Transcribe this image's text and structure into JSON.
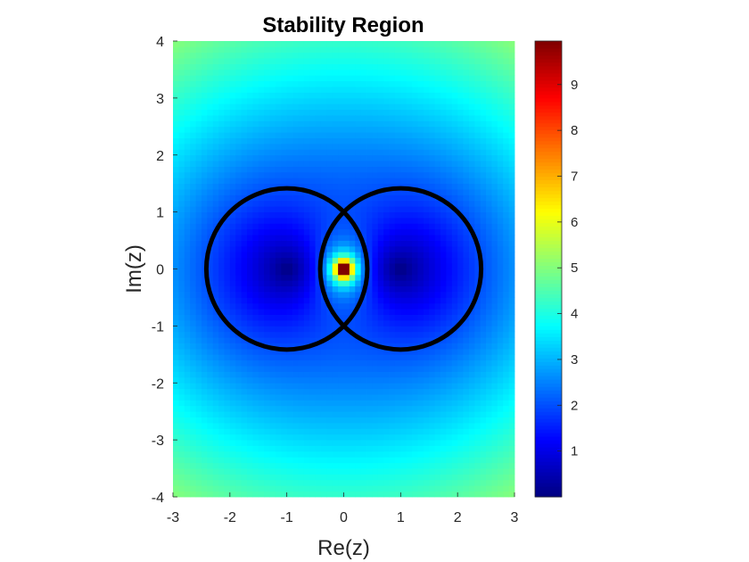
{
  "chart_data": {
    "type": "heatmap",
    "title": "Stability Region",
    "xlabel": "Re(z)",
    "ylabel": "Im(z)",
    "xlim": [
      -3,
      3
    ],
    "ylim": [
      -4,
      4
    ],
    "x_ticks": [
      "-3",
      "-2",
      "-1",
      "0",
      "1",
      "2",
      "3"
    ],
    "y_ticks": [
      "4",
      "3",
      "2",
      "1",
      "0",
      "-1",
      "-2",
      "-3",
      "-4"
    ],
    "colormap": "jet",
    "color_range": [
      0,
      9.95
    ],
    "colorbar_ticks": [
      "1",
      "2",
      "3",
      "4",
      "5",
      "6",
      "7",
      "8",
      "9"
    ],
    "value_function": "|z^2 - 1| / |z|",
    "grid": false,
    "boundary_curves": [
      {
        "center": [
          -1,
          0
        ],
        "radius": 1.414,
        "color": "#000000"
      },
      {
        "center": [
          1,
          0
        ],
        "radius": 1.414,
        "color": "#000000"
      }
    ]
  }
}
